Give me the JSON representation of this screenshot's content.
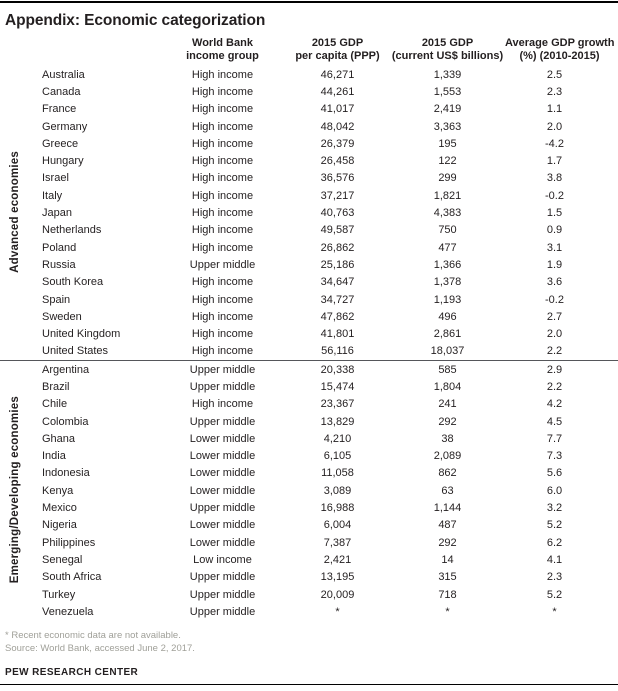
{
  "page": {
    "title": "Appendix: Economic categorization",
    "footnote_asterisk": "* Recent economic data are not available.",
    "footnote_source": "Source: World Bank, accessed June 2, 2017.",
    "brand": "PEW RESEARCH CENTER"
  },
  "colors": {
    "text": "#231f20",
    "muted_footnote": "#a0a099",
    "top_bottom_rule": "#010101",
    "group_divider": "#55565a"
  },
  "chart_data": {
    "type": "table",
    "title": "Appendix: Economic categorization",
    "column_headers": [
      {
        "lines": [
          "World Bank",
          "income group"
        ]
      },
      {
        "lines": [
          "2015 GDP",
          "per capita (PPP)"
        ]
      },
      {
        "lines": [
          "2015 GDP",
          "(current US$ billions)"
        ]
      },
      {
        "lines": [
          "Average GDP growth",
          "(%) (2010-2015)"
        ]
      }
    ],
    "column_keys": [
      "country",
      "income_group",
      "gdp_per_capita_ppp",
      "gdp_current_usd_billions",
      "avg_gdp_growth_pct_2010_2015"
    ],
    "groups": [
      {
        "label": "Advanced economies",
        "rows": [
          [
            "Australia",
            "High income",
            "46,271",
            "1,339",
            "2.5"
          ],
          [
            "Canada",
            "High income",
            "44,261",
            "1,553",
            "2.3"
          ],
          [
            "France",
            "High income",
            "41,017",
            "2,419",
            "1.1"
          ],
          [
            "Germany",
            "High income",
            "48,042",
            "3,363",
            "2.0"
          ],
          [
            "Greece",
            "High income",
            "26,379",
            "195",
            "-4.2"
          ],
          [
            "Hungary",
            "High income",
            "26,458",
            "122",
            "1.7"
          ],
          [
            "Israel",
            "High income",
            "36,576",
            "299",
            "3.8"
          ],
          [
            "Italy",
            "High income",
            "37,217",
            "1,821",
            "-0.2"
          ],
          [
            "Japan",
            "High income",
            "40,763",
            "4,383",
            "1.5"
          ],
          [
            "Netherlands",
            "High income",
            "49,587",
            "750",
            "0.9"
          ],
          [
            "Poland",
            "High income",
            "26,862",
            "477",
            "3.1"
          ],
          [
            "Russia",
            "Upper middle",
            "25,186",
            "1,366",
            "1.9"
          ],
          [
            "South Korea",
            "High income",
            "34,647",
            "1,378",
            "3.6"
          ],
          [
            "Spain",
            "High income",
            "34,727",
            "1,193",
            "-0.2"
          ],
          [
            "Sweden",
            "High income",
            "47,862",
            "496",
            "2.7"
          ],
          [
            "United Kingdom",
            "High income",
            "41,801",
            "2,861",
            "2.0"
          ],
          [
            "United States",
            "High income",
            "56,116",
            "18,037",
            "2.2"
          ]
        ]
      },
      {
        "label": "Emerging/Developing economies",
        "rows": [
          [
            "Argentina",
            "Upper middle",
            "20,338",
            "585",
            "2.9"
          ],
          [
            "Brazil",
            "Upper middle",
            "15,474",
            "1,804",
            "2.2"
          ],
          [
            "Chile",
            "High income",
            "23,367",
            "241",
            "4.2"
          ],
          [
            "Colombia",
            "Upper middle",
            "13,829",
            "292",
            "4.5"
          ],
          [
            "Ghana",
            "Lower middle",
            "4,210",
            "38",
            "7.7"
          ],
          [
            "India",
            "Lower middle",
            "6,105",
            "2,089",
            "7.3"
          ],
          [
            "Indonesia",
            "Lower middle",
            "11,058",
            "862",
            "5.6"
          ],
          [
            "Kenya",
            "Lower middle",
            "3,089",
            "63",
            "6.0"
          ],
          [
            "Mexico",
            "Upper middle",
            "16,988",
            "1,144",
            "3.2"
          ],
          [
            "Nigeria",
            "Lower middle",
            "6,004",
            "487",
            "5.2"
          ],
          [
            "Philippines",
            "Lower middle",
            "7,387",
            "292",
            "6.2"
          ],
          [
            "Senegal",
            "Low income",
            "2,421",
            "14",
            "4.1"
          ],
          [
            "South Africa",
            "Upper middle",
            "13,195",
            "315",
            "2.3"
          ],
          [
            "Turkey",
            "Upper middle",
            "20,009",
            "718",
            "5.2"
          ],
          [
            "Venezuela",
            "Upper middle",
            "*",
            "*",
            "*"
          ]
        ]
      }
    ]
  }
}
